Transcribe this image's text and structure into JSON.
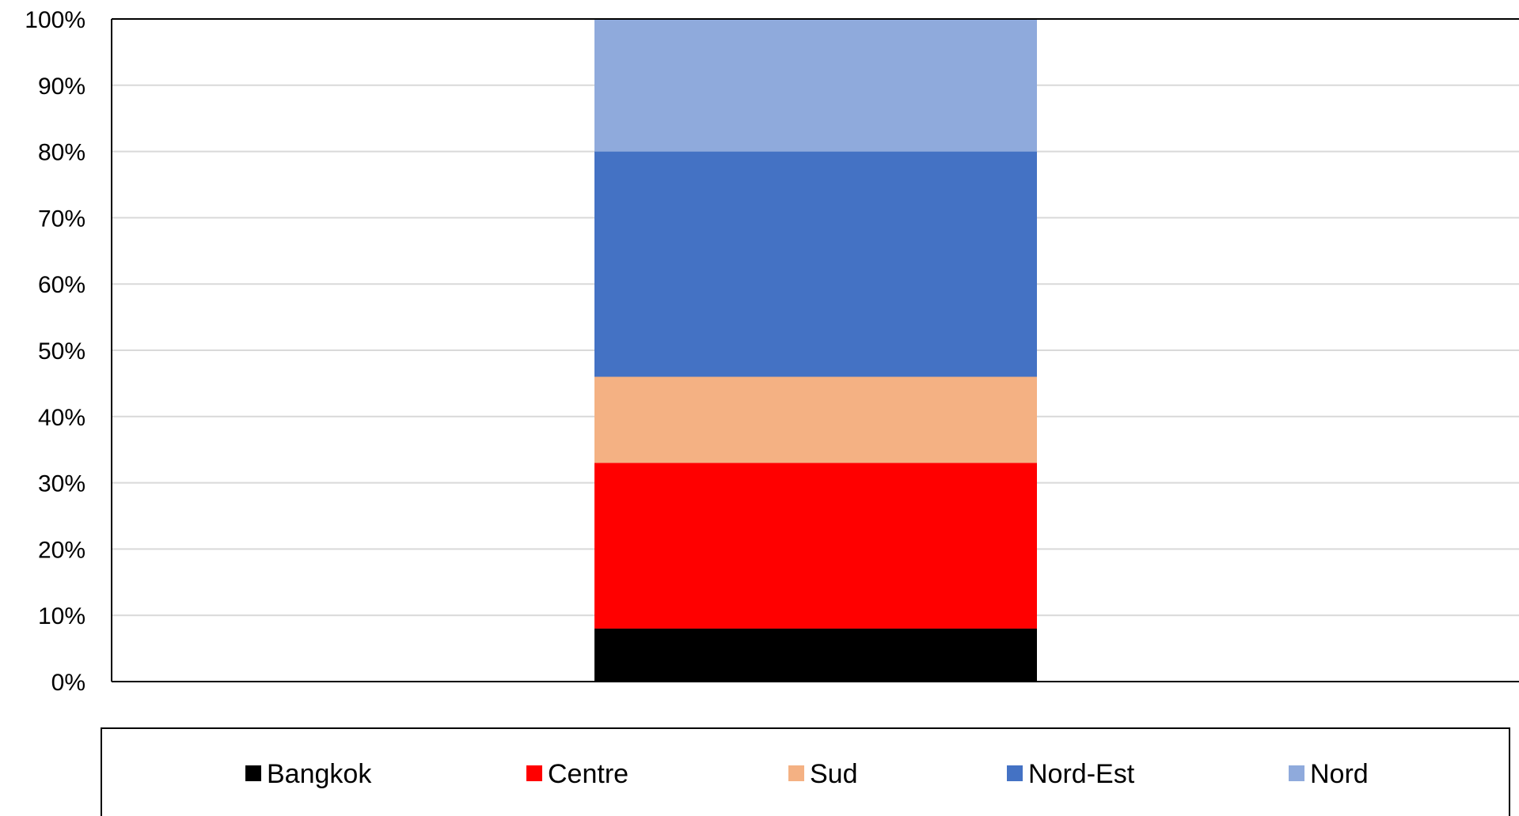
{
  "chart_data": {
    "type": "bar",
    "stacked": true,
    "percent_stacked": true,
    "categories": [
      ""
    ],
    "series": [
      {
        "name": "Bangkok",
        "values": [
          8
        ],
        "color": "#000000"
      },
      {
        "name": "Centre",
        "values": [
          25
        ],
        "color": "#FF0000"
      },
      {
        "name": "Sud",
        "values": [
          13
        ],
        "color": "#F4B183"
      },
      {
        "name": "Nord-Est",
        "values": [
          34
        ],
        "color": "#4472C4"
      },
      {
        "name": "Nord",
        "values": [
          20
        ],
        "color": "#8FAADC"
      }
    ],
    "ylim": [
      0,
      100
    ],
    "yticks": [
      "0%",
      "10%",
      "20%",
      "30%",
      "40%",
      "50%",
      "60%",
      "70%",
      "80%",
      "90%",
      "100%"
    ],
    "grid": true,
    "legend_position": "bottom"
  }
}
